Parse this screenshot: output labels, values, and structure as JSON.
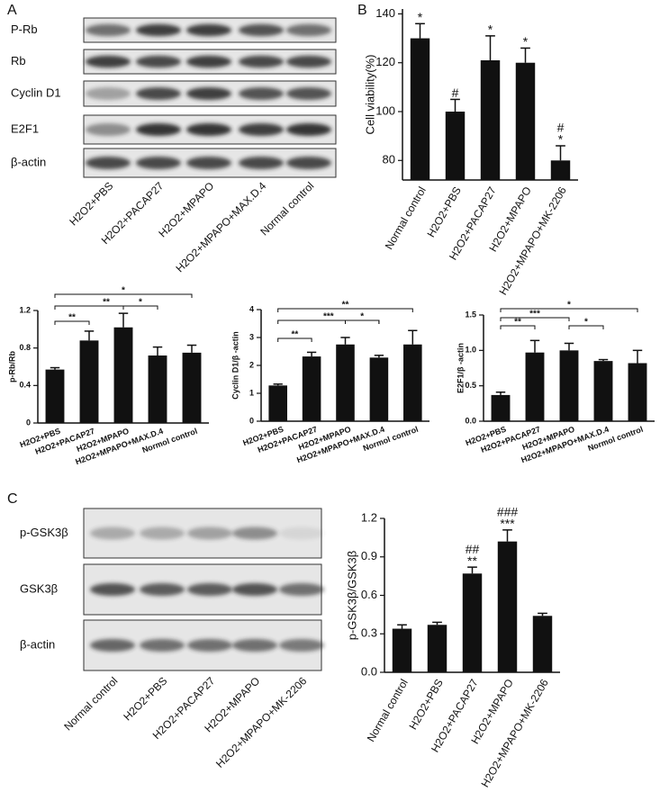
{
  "blots": [
    {
      "panel": "A",
      "rows": [
        "P-Rb",
        "Rb",
        "Cyclin D1",
        "E2F1",
        "β-actin"
      ],
      "lanes": [
        "H2O2+PBS",
        "H2O2+PACAP27",
        "H2O2+MPAPO",
        "H2O2+MPAPO+MAX.D.4",
        "Normal control"
      ]
    },
    {
      "panel": "C",
      "rows": [
        "p-GSK3β",
        "GSK3β",
        "β-actin"
      ],
      "lanes": [
        "Normal control",
        "H2O2+PBS",
        "H2O2+PACAP27",
        "H2O2+MPAPO",
        "H2O2+MPAPO+MK-2206"
      ]
    }
  ],
  "chart_data": [
    {
      "type": "bar",
      "panel": "B",
      "y_label": "Cell viability(%)",
      "color": "#111111",
      "categories": [
        "Normal control",
        "H2O2+PBS",
        "H2O2+PACAP27",
        "H2O2+MPAPO",
        "H2O2+MPAPO+MK-2206"
      ],
      "values": [
        130,
        100,
        121,
        120,
        80
      ],
      "errors": [
        6,
        5,
        10,
        6,
        6
      ],
      "annotations": [
        [
          "*"
        ],
        [
          "#"
        ],
        [
          "*"
        ],
        [
          "*"
        ],
        [
          "#",
          "*"
        ]
      ],
      "ylim": [
        72,
        142
      ],
      "yticks": [
        80,
        100,
        120,
        140
      ]
    },
    {
      "type": "bar",
      "y_label": "p-Rb/Rb",
      "color": "#111111",
      "categories": [
        "H2O2+PBS",
        "H2O2+PACAP27",
        "H2O2+MPAPO",
        "H2O2+MPAPO+MAX.D.4",
        "Normol control"
      ],
      "values": [
        0.57,
        0.88,
        1.02,
        0.72,
        0.75
      ],
      "errors": [
        0.02,
        0.1,
        0.15,
        0.09,
        0.08
      ],
      "brackets": [
        {
          "between": [
            "H2O2+PBS",
            "Normol control"
          ],
          "label": "*"
        },
        {
          "between": [
            "H2O2+PBS",
            "H2O2+MPAPO+MAX.D.4"
          ],
          "label": "**"
        },
        {
          "between": [
            "H2O2+MPAPO",
            "H2O2+MPAPO+MAX.D.4"
          ],
          "label": "*"
        },
        {
          "between": [
            "H2O2+PBS",
            "H2O2+PACAP27"
          ],
          "label": "**"
        }
      ],
      "ylim": [
        0,
        1.2
      ],
      "yticks": [
        0,
        0.4,
        0.8,
        1.2
      ]
    },
    {
      "type": "bar",
      "y_label": "Cyclin D1/β -actin",
      "color": "#111111",
      "categories": [
        "H2O2+PBS",
        "H2O2+PACAP27",
        "H2O2+MPAPO",
        "H2O2+MPAPO+MAX.D.4",
        "Normol control"
      ],
      "values": [
        1.28,
        2.32,
        2.75,
        2.28,
        2.75
      ],
      "errors": [
        0.05,
        0.15,
        0.25,
        0.08,
        0.5
      ],
      "brackets": [
        {
          "between": [
            "H2O2+PBS",
            "Normol control"
          ],
          "label": "**"
        },
        {
          "between": [
            "H2O2+PBS",
            "H2O2+MPAPO+MAX.D.4"
          ],
          "label": "***"
        },
        {
          "between": [
            "H2O2+MPAPO",
            "H2O2+MPAPO+MAX.D.4"
          ],
          "label": "*"
        },
        {
          "between": [
            "H2O2+PBS",
            "H2O2+PACAP27"
          ],
          "label": "**"
        }
      ],
      "ylim": [
        0,
        4
      ],
      "yticks": [
        0,
        1,
        2,
        3,
        4
      ]
    },
    {
      "type": "bar",
      "y_label": "E2F1/β -actin",
      "color": "#111111",
      "categories": [
        "H2O2+PBS",
        "H2O2+PACAP27",
        "H2O2+MPAPO",
        "H2O2+MPAPO+MAX.D.4",
        "Normol control"
      ],
      "values": [
        0.37,
        0.97,
        1.0,
        0.85,
        0.82
      ],
      "errors": [
        0.04,
        0.17,
        0.1,
        0.02,
        0.18
      ],
      "brackets": [
        {
          "between": [
            "H2O2+PBS",
            "Normol control"
          ],
          "label": "*"
        },
        {
          "between": [
            "H2O2+PBS",
            "H2O2+MPAPO"
          ],
          "label": "***"
        },
        {
          "between": [
            "H2O2+PBS",
            "H2O2+PACAP27"
          ],
          "label": "**"
        },
        {
          "between": [
            "H2O2+MPAPO",
            "H2O2+MPAPO+MAX.D.4"
          ],
          "label": "*"
        }
      ],
      "ylim": [
        0,
        1.5
      ],
      "yticks": [
        {
          "value": 0,
          "label": "0.0"
        },
        0.5,
        {
          "value": 1,
          "label": "1.0"
        },
        1.5
      ]
    },
    {
      "type": "bar",
      "y_label": "p-GSK3β/GSK3β",
      "color": "#111111",
      "categories": [
        "Normal control",
        "H2O2+PBS",
        "H2O2+PACAP27",
        "H2O2+MPAPO",
        "H2O2+MPAPO+MK-2206"
      ],
      "values": [
        0.34,
        0.37,
        0.77,
        1.02,
        0.44
      ],
      "errors": [
        0.03,
        0.02,
        0.05,
        0.09,
        0.02
      ],
      "annotations": [
        [],
        [],
        [
          "##",
          "**"
        ],
        [
          "###",
          "***"
        ],
        []
      ],
      "ylim": [
        0,
        1.2
      ],
      "yticks": [
        {
          "value": 0,
          "label": "0.0"
        },
        0.3,
        0.6,
        0.9,
        1.2
      ]
    }
  ]
}
